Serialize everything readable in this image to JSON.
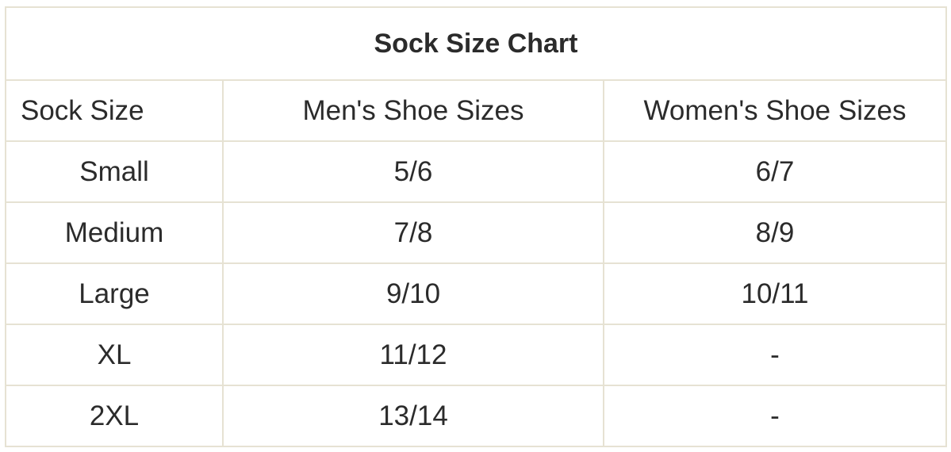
{
  "title": "Sock Size Chart",
  "headers": [
    "Sock Size",
    "Men's Shoe Sizes",
    "Women's Shoe Sizes"
  ],
  "rows": [
    [
      "Small",
      "5/6",
      "6/7"
    ],
    [
      "Medium",
      "7/8",
      "8/9"
    ],
    [
      "Large",
      "9/10",
      "10/11"
    ],
    [
      "XL",
      "11/12",
      "-"
    ],
    [
      "2XL",
      "13/14",
      "-"
    ]
  ],
  "colors": {
    "border": "#e6e2d3",
    "text": "#2b2b2b"
  }
}
